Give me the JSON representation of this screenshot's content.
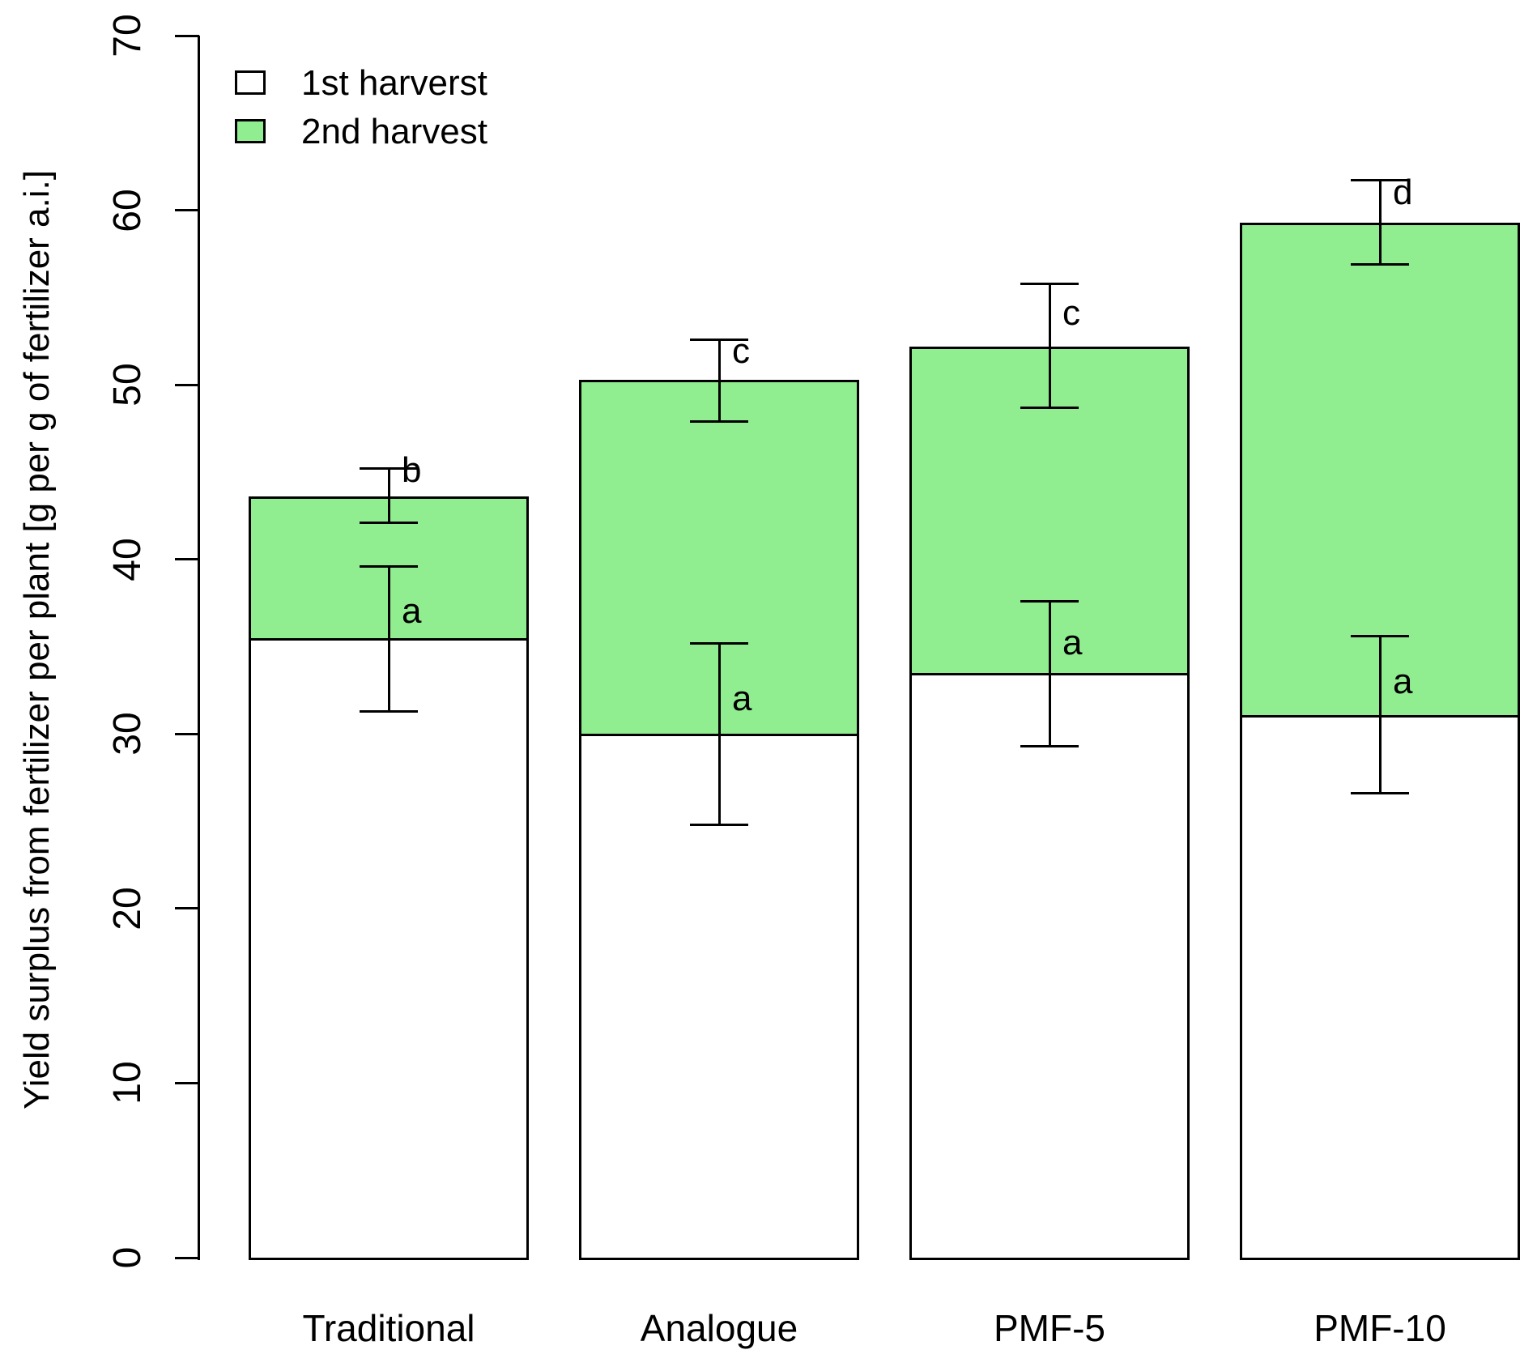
{
  "chart_data": {
    "type": "bar",
    "stacked": true,
    "title": "",
    "xlabel": "",
    "ylabel": "Yield surplus from fertilizer per plant [g per g of fertilizer a.i.]",
    "ylim": [
      0,
      70
    ],
    "yticks": [
      0,
      10,
      20,
      30,
      40,
      50,
      60,
      70
    ],
    "grid": false,
    "legend_position": "top-left",
    "legend": [
      {
        "label": "1st harverst",
        "color": "#FFFFFF"
      },
      {
        "label": "2nd harvest",
        "color": "#90EE90"
      }
    ],
    "categories": [
      "Traditional",
      "Analogue",
      "PMF-5",
      "PMF-10"
    ],
    "series": [
      {
        "name": "1st harverst",
        "color": "#FFFFFF",
        "values": [
          35.5,
          30.0,
          33.5,
          31.1
        ]
      },
      {
        "name": "2nd harvest",
        "color": "#90EE90",
        "values": [
          8.1,
          20.3,
          18.7,
          28.2
        ]
      }
    ],
    "stack_totals": [
      43.6,
      50.3,
      52.2,
      59.3
    ],
    "error_bars": {
      "first_harvest": [
        {
          "low": 31.3,
          "high": 39.6
        },
        {
          "low": 24.8,
          "high": 35.2
        },
        {
          "low": 29.3,
          "high": 37.6
        },
        {
          "low": 26.6,
          "high": 35.6
        }
      ],
      "total": [
        {
          "low": 42.1,
          "high": 45.2
        },
        {
          "low": 47.9,
          "high": 52.6
        },
        {
          "low": 48.7,
          "high": 55.8
        },
        {
          "low": 56.9,
          "high": 61.7
        }
      ]
    },
    "sig_letters": {
      "first_harvest": [
        {
          "letter": "a",
          "y": 37.0
        },
        {
          "letter": "a",
          "y": 32.0
        },
        {
          "letter": "a",
          "y": 35.2
        },
        {
          "letter": "a",
          "y": 33.0
        }
      ],
      "total": [
        {
          "letter": "b",
          "y": 45.1
        },
        {
          "letter": "c",
          "y": 51.9
        },
        {
          "letter": "c",
          "y": 54.1
        },
        {
          "letter": "d",
          "y": 61.0
        }
      ]
    },
    "colors": {
      "first_harvest_fill": "#FFFFFF",
      "second_harvest_fill": "#90EE90",
      "bar_border": "#000000",
      "axis": "#000000",
      "text": "#000000",
      "background": "#FFFFFF"
    }
  }
}
